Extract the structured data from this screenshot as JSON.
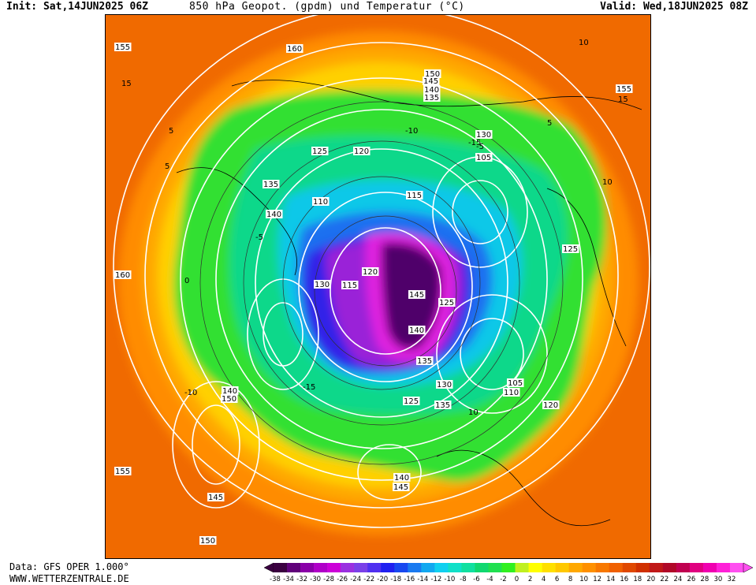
{
  "header": {
    "init": "Init: Sat,14JUN2025 06Z",
    "title": "850 hPa Geopot. (gpdm) und Temperatur (°C)",
    "valid": "Valid: Wed,18JUN2025 08Z"
  },
  "footer": {
    "source": "Data: GFS OPER 1.000°",
    "site": "WWW.WETTERZENTRALE.DE"
  },
  "geopotential_labels": [
    "155",
    "160",
    "150",
    "145",
    "140",
    "135",
    "155",
    "130",
    "125",
    "120",
    "115",
    "105",
    "110",
    "125",
    "135",
    "140",
    "130",
    "145",
    "140",
    "135",
    "120",
    "115",
    "125",
    "140",
    "150",
    "160",
    "155",
    "145",
    "150",
    "105",
    "110",
    "120",
    "130",
    "125",
    "135",
    "140",
    "145"
  ],
  "temperature_labels": [
    "10",
    "15",
    "-5",
    "-10",
    "-15",
    "5",
    "0",
    "-5",
    "10",
    "15",
    "5",
    "-10",
    "-15",
    "10",
    "5"
  ],
  "scale": {
    "ticks": [
      "-38",
      "-34",
      "-32",
      "-30",
      "-28",
      "-26",
      "-24",
      "-22",
      "-20",
      "-18",
      "-16",
      "-14",
      "-12",
      "-10",
      "-8",
      "-6",
      "-4",
      "-2",
      "0",
      "2",
      "4",
      "6",
      "8",
      "10",
      "12",
      "14",
      "16",
      "18",
      "20",
      "22",
      "24",
      "26",
      "28",
      "30",
      "32"
    ],
    "colors": [
      "#3a0040",
      "#60007a",
      "#8a00a8",
      "#b000c8",
      "#cc00d8",
      "#9a30e0",
      "#7a40e8",
      "#5030f0",
      "#2020f0",
      "#1848f0",
      "#1a7af0",
      "#12a8f0",
      "#10d0f0",
      "#10e0c8",
      "#10e0a0",
      "#10d870",
      "#20e050",
      "#30f020",
      "#c0f020",
      "#ffff00",
      "#ffe000",
      "#ffc800",
      "#ffa800",
      "#ff9000",
      "#f87800",
      "#f06000",
      "#e04800",
      "#d03000",
      "#c01818",
      "#b00828",
      "#c00050",
      "#e00080",
      "#f000b0",
      "#ff20d8",
      "#ff50f0"
    ],
    "unit": "°C"
  }
}
